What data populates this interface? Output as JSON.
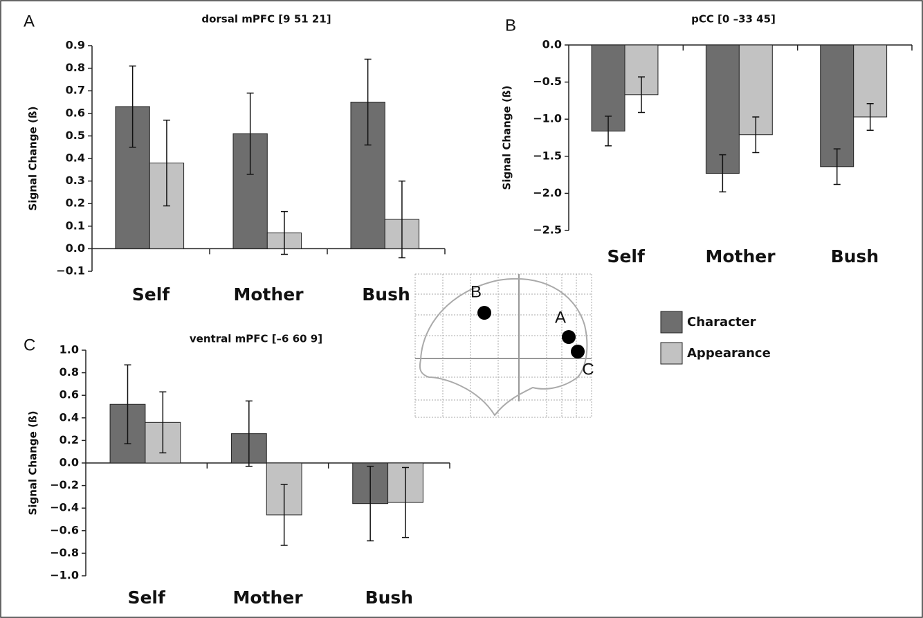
{
  "chart_data": [
    {
      "type": "bar",
      "panel": "A",
      "title": "dorsal mPFC [9 51 21]",
      "y_label": "Signal Change (ß)",
      "categories": [
        "Self",
        "Mother",
        "Bush"
      ],
      "ylim": [
        -0.1,
        0.9
      ],
      "yticks": [
        {
          "value": -0.1,
          "label": "−0.1"
        },
        {
          "value": 0,
          "label": "0.0"
        },
        0.1,
        0.2,
        0.3,
        0.4,
        0.5,
        0.6,
        0.7,
        0.8,
        0.9
      ],
      "series": [
        {
          "values": [
            0.63,
            0.51,
            0.65
          ],
          "errors": [
            0.18,
            0.18,
            0.19
          ]
        },
        {
          "values": [
            0.38,
            0.07,
            0.13
          ],
          "errors": [
            0.19,
            0.095,
            0.17
          ]
        }
      ]
    },
    {
      "type": "bar",
      "panel": "B",
      "title": "pCC [0 –33 45]",
      "y_label": "Signal Change (ß)",
      "categories": [
        "Self",
        "Mother",
        "Bush"
      ],
      "ylim": [
        -2.5,
        0
      ],
      "yticks": [
        {
          "value": -2.5,
          "label": "−2.5"
        },
        {
          "value": -2,
          "label": "−2.0"
        },
        {
          "value": -1.5,
          "label": "−1.5"
        },
        {
          "value": -1,
          "label": "−1.0"
        },
        {
          "value": -0.5,
          "label": "−0.5"
        },
        {
          "value": 0,
          "label": "0.0"
        }
      ],
      "series": [
        {
          "values": [
            -1.16,
            -1.73,
            -1.64
          ],
          "errors": [
            0.2,
            0.25,
            0.24
          ]
        },
        {
          "values": [
            -0.67,
            -1.21,
            -0.97
          ],
          "errors": [
            0.24,
            0.24,
            0.18
          ]
        }
      ]
    },
    {
      "type": "bar",
      "panel": "C",
      "title": "ventral mPFC [–6 60 9]",
      "y_label": "Signal Change (ß)",
      "categories": [
        "Self",
        "Mother",
        "Bush"
      ],
      "ylim": [
        -1,
        1
      ],
      "yticks": [
        {
          "value": -1,
          "label": "−1.0"
        },
        {
          "value": -0.8,
          "label": "−0.8"
        },
        {
          "value": -0.6,
          "label": "−0.6"
        },
        {
          "value": -0.4,
          "label": "−0.4"
        },
        {
          "value": -0.2,
          "label": "−0.2"
        },
        {
          "value": 0,
          "label": "0.0"
        },
        0.2,
        0.4,
        0.6,
        0.8,
        {
          "value": 1,
          "label": "1.0"
        }
      ],
      "series": [
        {
          "values": [
            0.52,
            0.26,
            -0.36
          ],
          "errors": [
            0.35,
            0.29,
            0.33
          ]
        },
        {
          "values": [
            0.36,
            -0.46,
            -0.35
          ],
          "errors": [
            0.27,
            0.27,
            0.31
          ]
        }
      ]
    }
  ],
  "legend": [
    {
      "name": "Character",
      "color": "#6e6e6e"
    },
    {
      "name": "Appearance",
      "color": "#c2c2c2"
    }
  ],
  "inset": {
    "labels": [
      "B",
      "A",
      "C"
    ]
  }
}
